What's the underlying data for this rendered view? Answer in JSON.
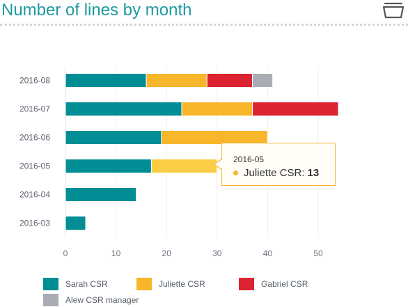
{
  "header": {
    "title": "Number of lines by month",
    "icon": "folder-open-icon"
  },
  "chart_data": {
    "type": "bar",
    "orientation": "horizontal",
    "stacked": true,
    "title": "Number of lines by month",
    "categories": [
      "2016-08",
      "2016-07",
      "2016-06",
      "2016-05",
      "2016-04",
      "2016-03"
    ],
    "series": [
      {
        "name": "Sarah CSR",
        "color": "#008d93",
        "values": [
          16,
          23,
          19,
          17,
          14,
          4
        ]
      },
      {
        "name": "Juliette CSR",
        "color": "#f8b62c",
        "values": [
          12,
          14,
          21,
          13,
          0,
          0
        ]
      },
      {
        "name": "Gabriel CSR",
        "color": "#dc2431",
        "values": [
          9,
          17,
          0,
          0,
          0,
          0
        ]
      },
      {
        "name": "Alew CSR manager",
        "color": "#a9adb3",
        "values": [
          4,
          0,
          0,
          0,
          0,
          0
        ]
      }
    ],
    "x_ticks": [
      0,
      10,
      20,
      30,
      40,
      50
    ],
    "xlim": [
      0,
      55
    ],
    "grid": true,
    "legend_position": "bottom"
  },
  "tooltip": {
    "category": "2016-05",
    "series": "Juliette CSR:",
    "value": "13",
    "color": "#f8b62c"
  }
}
